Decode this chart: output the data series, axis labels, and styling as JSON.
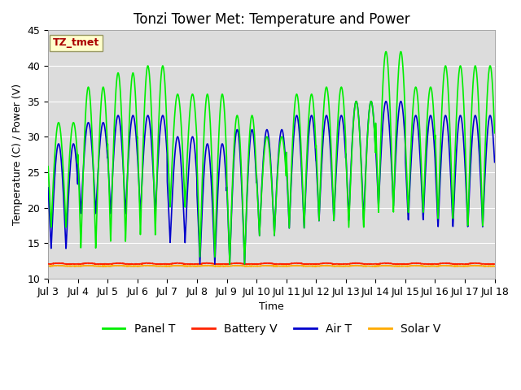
{
  "title": "Tonzi Tower Met: Temperature and Power",
  "xlabel": "Time",
  "ylabel": "Temperature (C) / Power (V)",
  "ylim": [
    10,
    45
  ],
  "xlim": [
    0,
    15
  ],
  "xtick_labels": [
    "Jul 3",
    "Jul 4",
    "Jul 5",
    "Jul 6",
    "Jul 7",
    "Jul 8",
    "Jul 9",
    "Jul 10",
    "Jul 11",
    "Jul 12",
    "Jul 13",
    "Jul 14",
    "Jul 15",
    "Jul 16",
    "Jul 17",
    "Jul 18"
  ],
  "ytick_values": [
    10,
    15,
    20,
    25,
    30,
    35,
    40,
    45
  ],
  "legend_labels": [
    "Panel T",
    "Battery V",
    "Air T",
    "Solar V"
  ],
  "legend_colors": [
    "#00ee00",
    "#ff2200",
    "#0000cc",
    "#ffaa00"
  ],
  "annotation_text": "TZ_tmet",
  "annotation_color": "#aa0000",
  "annotation_bg": "#ffffcc",
  "plot_bg": "#dcdcdc",
  "grid_color": "#ffffff",
  "panel_t_color": "#00ee00",
  "battery_v_color": "#ff2200",
  "air_t_color": "#0000cc",
  "solar_v_color": "#ffaa00",
  "n_days": 15,
  "pts_per_day": 144,
  "panel_t_day_peaks": [
    32,
    37,
    39,
    40,
    36,
    36,
    33,
    30,
    36,
    37,
    35,
    42,
    37,
    40,
    40,
    37
  ],
  "panel_t_day_troughs": [
    17,
    14,
    15,
    16,
    20,
    13,
    12,
    16,
    17,
    18,
    17,
    19,
    19,
    18,
    17,
    18
  ],
  "air_t_day_peaks": [
    29,
    32,
    33,
    33,
    30,
    29,
    31,
    31,
    33,
    33,
    35,
    35,
    33,
    33,
    33,
    31
  ],
  "air_t_day_troughs": [
    14,
    19,
    19,
    19,
    15,
    12,
    12,
    16,
    17,
    18,
    18,
    20,
    18,
    17,
    17,
    20
  ],
  "battery_v_level": 12.05,
  "solar_v_level": 11.75,
  "title_fontsize": 12,
  "label_fontsize": 9,
  "tick_fontsize": 9,
  "legend_fontsize": 10,
  "figwidth": 6.4,
  "figheight": 4.8,
  "dpi": 100
}
